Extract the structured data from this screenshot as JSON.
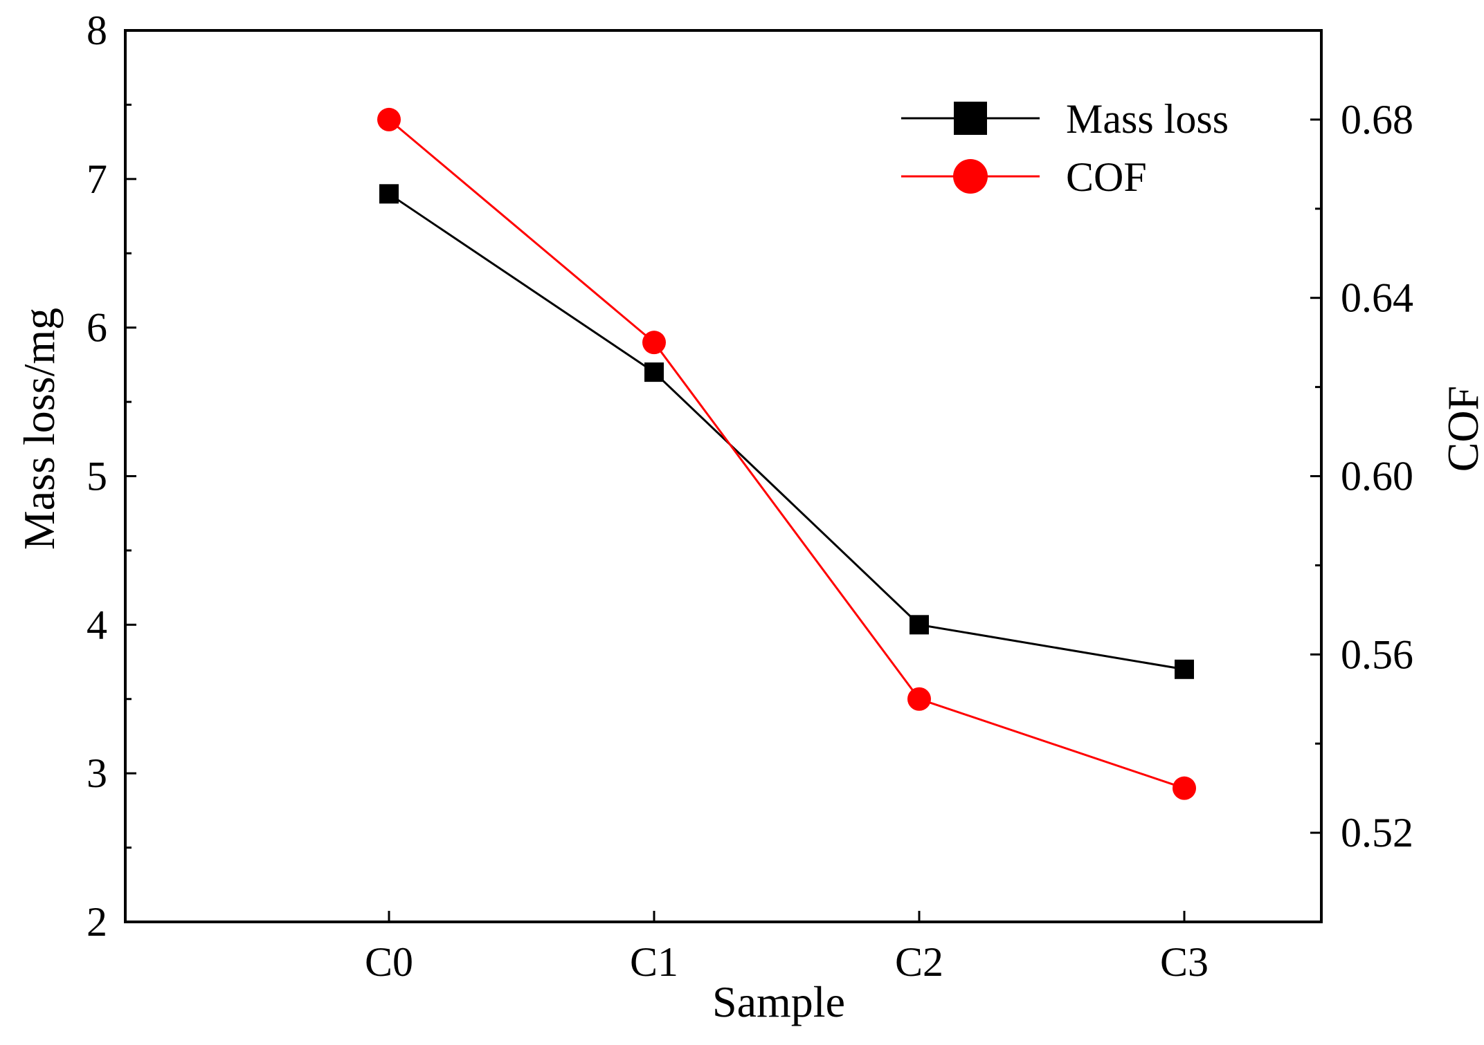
{
  "chart_data": {
    "type": "line",
    "categories": [
      "C0",
      "C1",
      "C2",
      "C3"
    ],
    "xlabel": "Sample",
    "ylabel_left": "Mass loss/mg",
    "ylabel_right": "COF",
    "y_left": {
      "range": [
        2,
        8
      ],
      "ticks": [
        2,
        3,
        4,
        5,
        6,
        7,
        8
      ],
      "tick_labels": [
        "2",
        "3",
        "4",
        "5",
        "6",
        "7",
        "8"
      ]
    },
    "y_right": {
      "range": [
        0.5,
        0.7
      ],
      "ticks": [
        0.52,
        0.56,
        0.6,
        0.64,
        0.68
      ],
      "tick_labels": [
        "0.52",
        "0.56",
        "0.60",
        "0.64",
        "0.68"
      ]
    },
    "series": [
      {
        "name": "Mass loss",
        "axis": "left",
        "color": "#000000",
        "marker": "square",
        "values": [
          6.9,
          5.7,
          4.0,
          3.7
        ]
      },
      {
        "name": "COF",
        "axis": "right",
        "color": "#ff0000",
        "marker": "circle",
        "values": [
          0.68,
          0.63,
          0.55,
          0.53
        ]
      }
    ],
    "legend_position": "top-right",
    "grid": false
  }
}
